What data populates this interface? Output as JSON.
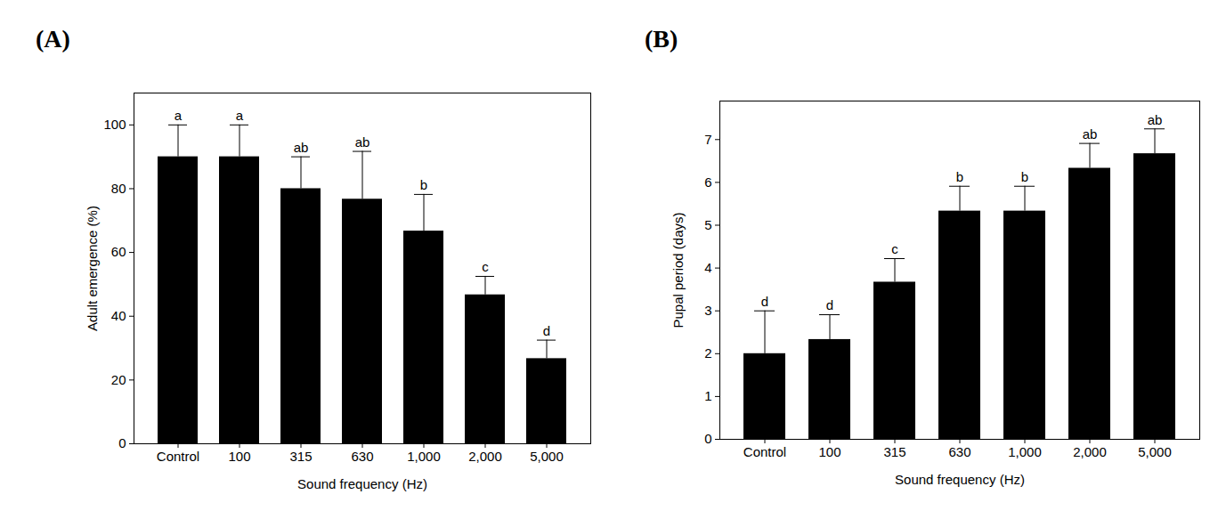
{
  "chart_data": [
    {
      "type": "bar",
      "title": "(A)",
      "categories": [
        "Control",
        "100",
        "315",
        "630",
        "1,000",
        "2,000",
        "5,000"
      ],
      "values": [
        90,
        90,
        80,
        76.7,
        66.7,
        46.7,
        26.7
      ],
      "errors": [
        10,
        10,
        10,
        15,
        11.5,
        5.8,
        5.8
      ],
      "annotations": [
        "a",
        "a",
        "ab",
        "ab",
        "b",
        "c",
        "d"
      ],
      "color": "#000000",
      "x_label": "Sound frequency (Hz)",
      "y_label": "Adult emergence (%)",
      "ylim": [
        0,
        110
      ],
      "yticks": [
        0,
        20,
        40,
        60,
        80,
        100
      ],
      "grid": false
    },
    {
      "type": "bar",
      "title": "(B)",
      "categories": [
        "Control",
        "100",
        "315",
        "630",
        "1,000",
        "2,000",
        "5,000"
      ],
      "values": [
        2,
        2.33,
        3.67,
        5.33,
        5.33,
        6.33,
        6.67
      ],
      "errors": [
        1,
        0.58,
        0.55,
        0.58,
        0.58,
        0.58,
        0.58
      ],
      "annotations": [
        "d",
        "d",
        "c",
        "b",
        "b",
        "ab",
        "ab"
      ],
      "color": "#000000",
      "x_label": "Sound frequency (Hz)",
      "y_label": "Pupal period (days)",
      "ylim": [
        0,
        7.9
      ],
      "yticks": [
        0,
        1,
        2,
        3,
        4,
        5,
        6,
        7
      ],
      "grid": false
    }
  ]
}
